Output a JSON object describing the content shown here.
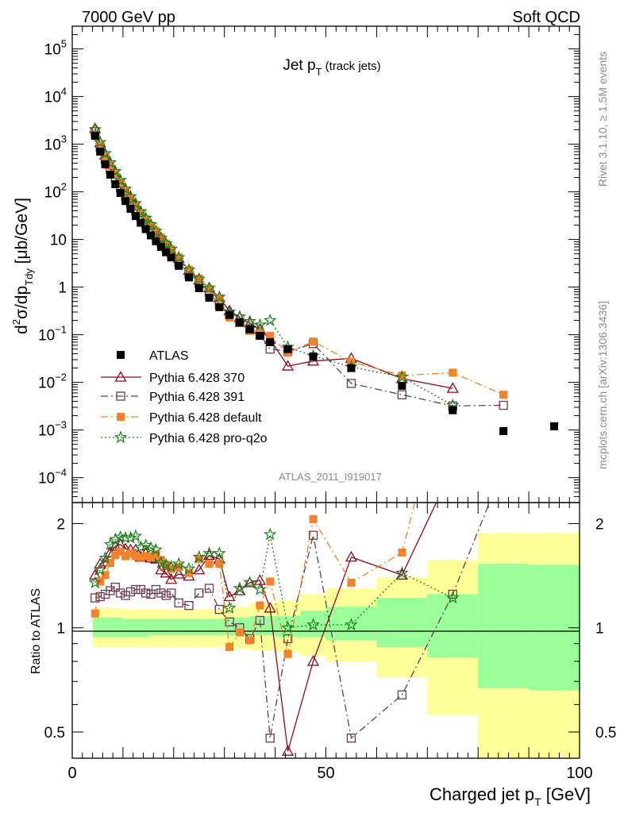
{
  "header": {
    "left": "7000 GeV pp",
    "right": "Soft QCD"
  },
  "side_labels": {
    "rivet": "Rivet 3.1.10, ≥ 1.5M events",
    "mcplots": "mcplots.cern.ch [arXiv:1306.3436]"
  },
  "chart_data": {
    "type": "scatter",
    "title": "Jet pT (track jets)",
    "analysis_id": "ATLAS_2011_I919017",
    "xlabel": "Charged jet pT [GeV]",
    "ylabel_main": "d²σ/dp_Tdy [μb/GeV]",
    "ylabel_ratio": "Ratio to ATLAS",
    "xlim": [
      0,
      100
    ],
    "ylim_main": [
      3e-05,
      300000.0
    ],
    "ylim_ratio": [
      0.42,
      2.3
    ],
    "y_scale_main": "log",
    "y_scale_ratio": "log",
    "x_ticks": [
      "0",
      "50",
      "100"
    ],
    "y_ticks_main": [
      "10^-4",
      "10^-3",
      "10^-2",
      "10^-1",
      "1",
      "10",
      "10^2",
      "10^3",
      "10^4",
      "10^5"
    ],
    "y_ticks_ratio": [
      "0.5",
      "1",
      "2"
    ],
    "legend_position": "lower-left",
    "series": [
      {
        "name": "ATLAS",
        "color": "#000000",
        "marker": "filled-square",
        "x": [
          4.5,
          5.5,
          6.5,
          7.5,
          8.5,
          9.5,
          10.5,
          11.5,
          12.5,
          13.5,
          14.5,
          15.5,
          16.5,
          17.5,
          18.5,
          19.5,
          21,
          23,
          25,
          27,
          29,
          31,
          33,
          35,
          37,
          39,
          42.5,
          47.5,
          55,
          65,
          75,
          85,
          95
        ],
        "values": [
          1500,
          700,
          380,
          230,
          145,
          95,
          64,
          44,
          31,
          22.5,
          16.5,
          12.2,
          9.2,
          7.0,
          5.4,
          4.2,
          2.8,
          1.6,
          0.95,
          0.6,
          0.38,
          0.26,
          0.18,
          0.13,
          0.095,
          0.07,
          0.05,
          0.035,
          0.02,
          0.0085,
          0.0026,
          0.00095,
          0.0012
        ]
      },
      {
        "name": "Pythia 6.428 370",
        "color": "#8b0a1e",
        "marker": "open-triangle",
        "line": "solid",
        "x": [
          4.5,
          5.5,
          6.5,
          7.5,
          8.5,
          9.5,
          10.5,
          11.5,
          12.5,
          13.5,
          14.5,
          15.5,
          16.5,
          17.5,
          18.5,
          19.5,
          21,
          23,
          25,
          27,
          29,
          31,
          33,
          35,
          37,
          39,
          42.5,
          47.5,
          55,
          65,
          75
        ],
        "values": [
          2130,
          1070,
          590,
          380,
          250,
          165,
          108,
          74,
          52,
          36,
          27,
          19.4,
          14.5,
          10.3,
          7.8,
          5.8,
          4.0,
          2.25,
          1.4,
          0.97,
          0.6,
          0.32,
          0.23,
          0.175,
          0.13,
          0.08,
          0.022,
          0.028,
          0.032,
          0.012,
          0.0075
        ],
        "ratio": [
          1.42,
          1.53,
          1.55,
          1.65,
          1.72,
          1.74,
          1.69,
          1.68,
          1.68,
          1.6,
          1.64,
          1.59,
          1.58,
          1.47,
          1.44,
          1.38,
          1.43,
          1.41,
          1.47,
          1.62,
          1.58,
          1.23,
          1.28,
          1.35,
          1.37,
          1.14,
          0.44,
          0.8,
          1.6,
          1.42,
          2.9
        ]
      },
      {
        "name": "Pythia 6.428 391",
        "color": "#6b3a52",
        "marker": "open-square",
        "line": "dash-dot",
        "x": [
          4.5,
          5.5,
          6.5,
          7.5,
          8.5,
          9.5,
          10.5,
          11.5,
          12.5,
          13.5,
          14.5,
          15.5,
          16.5,
          17.5,
          18.5,
          19.5,
          21,
          23,
          25,
          27,
          29,
          31,
          33,
          35,
          37,
          39,
          42.5,
          47.5,
          55,
          65,
          75,
          85
        ],
        "values": [
          1830,
          860,
          475,
          295,
          190,
          120,
          79,
          56,
          40,
          29,
          20.8,
          15.3,
          11.9,
          8.8,
          6.7,
          5.3,
          3.3,
          1.85,
          1.2,
          0.78,
          0.43,
          0.27,
          0.18,
          0.13,
          0.1,
          0.05,
          0.045,
          0.065,
          0.0095,
          0.0055,
          0.0032,
          0.0033
        ],
        "ratio": [
          1.22,
          1.23,
          1.25,
          1.28,
          1.31,
          1.26,
          1.24,
          1.27,
          1.29,
          1.29,
          1.26,
          1.25,
          1.29,
          1.26,
          1.24,
          1.26,
          1.18,
          1.16,
          1.26,
          1.3,
          1.13,
          1.04,
          1.0,
          0.93,
          1.05,
          0.48,
          0.93,
          1.85,
          0.48,
          0.64,
          1.25,
          2.9
        ]
      },
      {
        "name": "Pythia 6.428 default",
        "color": "#f5822a",
        "marker": "filled-square",
        "line": "dash-dot",
        "x": [
          4.5,
          5.5,
          6.5,
          7.5,
          8.5,
          9.5,
          10.5,
          11.5,
          12.5,
          13.5,
          14.5,
          15.5,
          16.5,
          17.5,
          18.5,
          19.5,
          21,
          23,
          25,
          27,
          29,
          31,
          33,
          35,
          37,
          39,
          42.5,
          47.5,
          55,
          65,
          75,
          85
        ],
        "values": [
          1640,
          950,
          540,
          355,
          235,
          158,
          103,
          72,
          50,
          36,
          26.5,
          19.5,
          15,
          11,
          8.2,
          6.2,
          4.2,
          2.3,
          1.5,
          0.92,
          0.58,
          0.23,
          0.175,
          0.12,
          0.11,
          0.095,
          0.042,
          0.072,
          0.027,
          0.014,
          0.016,
          0.0055
        ],
        "ratio": [
          1.1,
          1.36,
          1.42,
          1.54,
          1.62,
          1.66,
          1.61,
          1.64,
          1.61,
          1.6,
          1.61,
          1.6,
          1.63,
          1.57,
          1.52,
          1.48,
          1.5,
          1.44,
          1.58,
          1.53,
          1.53,
          0.88,
          0.97,
          0.92,
          1.16,
          1.36,
          0.84,
          2.06,
          1.35,
          1.65,
          6.2,
          5.8
        ]
      },
      {
        "name": "Pythia 6.428 pro-q2o",
        "color": "#1b7d1b",
        "marker": "open-star",
        "line": "dotted",
        "x": [
          4.5,
          5.5,
          6.5,
          7.5,
          8.5,
          9.5,
          10.5,
          11.5,
          12.5,
          13.5,
          14.5,
          15.5,
          16.5,
          17.5,
          18.5,
          19.5,
          21,
          23,
          25,
          27,
          29,
          31,
          33,
          35,
          37,
          39,
          42.5,
          47.5,
          55,
          65,
          75
        ],
        "values": [
          2030,
          1100,
          640,
          410,
          270,
          175,
          115,
          80,
          57,
          38.5,
          28,
          20.5,
          15,
          10.8,
          8.2,
          6.3,
          4.2,
          2.3,
          1.48,
          0.95,
          0.62,
          0.3,
          0.24,
          0.19,
          0.16,
          0.2,
          0.055,
          0.036,
          0.021,
          0.013,
          0.0033
        ],
        "ratio": [
          1.35,
          1.47,
          1.59,
          1.74,
          1.8,
          1.83,
          1.82,
          1.82,
          1.84,
          1.71,
          1.73,
          1.7,
          1.68,
          1.54,
          1.52,
          1.5,
          1.53,
          1.48,
          1.6,
          1.64,
          1.64,
          1.14,
          1.3,
          1.35,
          1.29,
          1.86,
          1.0,
          1.02,
          1.02,
          1.44,
          1.22
        ]
      }
    ],
    "uncertainty_bands": {
      "x_edges": [
        4,
        10,
        15,
        20,
        25,
        30,
        35,
        40,
        45,
        50,
        60,
        70,
        80,
        90,
        100
      ],
      "stat_lo": [
        0.94,
        0.94,
        0.95,
        0.95,
        0.95,
        0.95,
        0.95,
        0.94,
        0.94,
        0.92,
        0.88,
        0.82,
        0.67,
        0.66
      ],
      "stat_hi": [
        1.07,
        1.06,
        1.06,
        1.06,
        1.06,
        1.07,
        1.08,
        1.08,
        1.12,
        1.15,
        1.22,
        1.25,
        1.53,
        1.52
      ],
      "total_lo": [
        0.88,
        0.88,
        0.88,
        0.88,
        0.88,
        0.87,
        0.86,
        0.85,
        0.83,
        0.8,
        0.72,
        0.56,
        0.35,
        0.35
      ],
      "total_hi": [
        1.14,
        1.13,
        1.13,
        1.13,
        1.13,
        1.15,
        1.18,
        1.2,
        1.25,
        1.3,
        1.4,
        1.57,
        1.88,
        1.88
      ]
    }
  }
}
